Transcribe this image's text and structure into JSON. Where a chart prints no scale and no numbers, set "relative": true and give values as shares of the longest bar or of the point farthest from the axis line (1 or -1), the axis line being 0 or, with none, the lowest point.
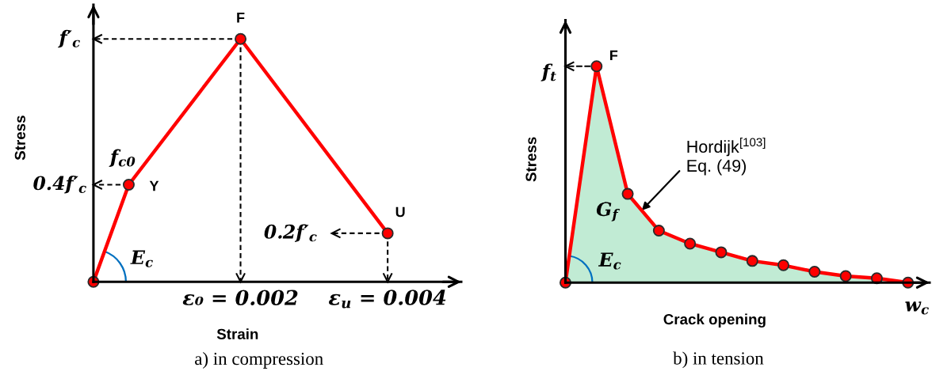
{
  "chart_data": [
    {
      "type": "line",
      "title": "a) in compression",
      "xlabel": "Strain",
      "ylabel": "Stress",
      "relative": true,
      "x": [
        0,
        0.00048,
        0.002,
        0.004
      ],
      "marker": "circle",
      "xlim": [
        0,
        0.005
      ],
      "xticks": [
        {
          "value": 0.002,
          "label": "ε₀ = 0.002"
        },
        {
          "value": 0.004,
          "label": "ε$_{u}$ = 0.004"
        }
      ],
      "series": [
        {
          "color": "#ff0000",
          "values": [
            0,
            0.4,
            1,
            0.2
          ]
        },
        {
          "type": "line",
          "x": [
            0.002,
            0
          ],
          "values": [
            1,
            1
          ],
          "color": "#000000",
          "line_style": "dashed",
          "marker": "none"
        },
        {
          "type": "line",
          "x": [
            0.00048,
            0
          ],
          "values": [
            0.4,
            0.4
          ],
          "color": "#000000",
          "line_style": "dashed",
          "marker": "none"
        },
        {
          "type": "line",
          "x": [
            0.002,
            0.002
          ],
          "values": [
            1,
            0
          ],
          "color": "#000000",
          "line_style": "dashed",
          "marker": "none"
        },
        {
          "type": "line",
          "x": [
            0.004,
            0.004
          ],
          "values": [
            0.2,
            0
          ],
          "color": "#000000",
          "line_style": "dashed",
          "marker": "none"
        },
        {
          "type": "line",
          "x": [
            0.004,
            0.00324
          ],
          "values": [
            0.2,
            0.2
          ],
          "color": "#000000",
          "line_style": "dashed",
          "marker": "none"
        }
      ],
      "annotations": [
        {
          "text": "F",
          "x": 0.002,
          "y": 1
        },
        {
          "text": "Y",
          "x": 0.00048,
          "y": 0.4
        },
        {
          "text": "U",
          "x": 0.004,
          "y": 0.2
        },
        {
          "text": "f$_{c0}$",
          "x": 0.00048,
          "y": 0.4
        },
        "E$_{c}$",
        {
          "text": "f′$_{c}$",
          "x": 0,
          "y": 1
        },
        {
          "text": "0.4f′$_{c}$",
          "x": 0,
          "y": 0.4
        },
        {
          "text": "0.2f′$_{c}$",
          "x": 0.00324,
          "y": 0.2
        }
      ]
    },
    {
      "type": "area",
      "title": "b) in tension",
      "xlabel": "Crack opening",
      "ylabel": "Stress",
      "relative": true,
      "color": "#ff0000",
      "marker": "circle",
      "categories": [
        null,
        null,
        null,
        null,
        null,
        null,
        null,
        null,
        null,
        null,
        null,
        null
      ],
      "series": [
        {
          "color": "#c1ebd4",
          "values": [
            0,
            1,
            0.41,
            0.24,
            0.18,
            0.14,
            0.1,
            0.08,
            0.05,
            0.03,
            0.02,
            0
          ]
        }
      ],
      "annotations": [
        "F",
        "f$_{t}$",
        "Hordijk$^{[103]}$\nEq. (49)",
        "G$_{f}$",
        "E$_{c}$",
        "w$_{c}$"
      ]
    }
  ]
}
